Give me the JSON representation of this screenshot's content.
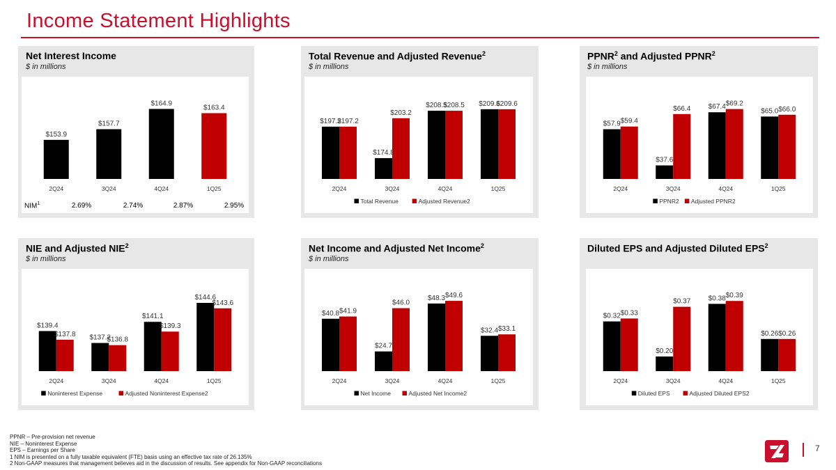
{
  "page": {
    "title": "Income Statement Highlights",
    "page_number": "7",
    "footnotes": [
      "PPNR – Pre-provision net revenue",
      "NIE – Noninterest Expense",
      "EPS – Earnings per Share",
      "1   NIM is presented on a fully taxable equivalent (FTE) basis using an effective tax rate of 26.135%",
      "2   Non-GAAP measures that management believes aid in the discussion of results. See appendix for Non-GAAP reconciliations"
    ]
  },
  "colors": {
    "black": "#000000",
    "red": "#c00000",
    "accent": "#c8102e",
    "panel_bg": "#e7e7e7"
  },
  "panels": {
    "nii": {
      "title": "Net Interest Income",
      "subtitle": "$ in millions",
      "nim_label": "NIM",
      "nim_sup": "1",
      "nim_values": [
        "2.69%",
        "2.74%",
        "2.87%",
        "2.95%"
      ]
    },
    "revenue": {
      "title": "Total Revenue and Adjusted Revenue",
      "sup": "2",
      "subtitle": "$ in millions"
    },
    "ppnr": {
      "title": "PPNR",
      "sup": "2",
      "title_mid": " and Adjusted PPNR",
      "sup2": "2",
      "subtitle": "$ in millions"
    },
    "nie": {
      "title": "NIE and Adjusted NIE",
      "sup": "2",
      "subtitle": "$ in millions"
    },
    "netincome": {
      "title": "Net Income and Adjusted Net Income",
      "sup": "2",
      "subtitle": "$ in millions"
    },
    "eps": {
      "title": "Diluted EPS and Adjusted Diluted EPS",
      "sup": "2",
      "subtitle": ""
    }
  },
  "chart_data": [
    {
      "id": "nii",
      "type": "bar",
      "categories": [
        "2Q24",
        "3Q24",
        "4Q24",
        "1Q25"
      ],
      "series": [
        {
          "values": [
            153.9,
            157.7,
            164.9,
            163.4
          ],
          "colors": [
            "#000000",
            "#000000",
            "#000000",
            "#c00000"
          ]
        }
      ],
      "data_labels": [
        "$153.9",
        "$157.7",
        "$164.9",
        "$163.4"
      ],
      "ylim": [
        140,
        166
      ],
      "legend": "none"
    },
    {
      "id": "revenue",
      "type": "bar",
      "categories": [
        "2Q24",
        "3Q24",
        "4Q24",
        "1Q25"
      ],
      "series": [
        {
          "name": "Total Revenue",
          "color": "#000000",
          "values": [
            197.2,
            174.8,
            208.5,
            209.6
          ],
          "labels": [
            "$197.2",
            "$174.8",
            "$208.5",
            "$209.6"
          ]
        },
        {
          "name": "Adjusted Revenue2",
          "color": "#c00000",
          "values": [
            197.2,
            203.2,
            208.5,
            209.6
          ],
          "labels": [
            "$197.2",
            "$203.2",
            "$208.5",
            "$209.6"
          ]
        }
      ],
      "ylim": [
        160,
        212
      ],
      "legend": "bottom"
    },
    {
      "id": "ppnr",
      "type": "bar",
      "categories": [
        "2Q24",
        "3Q24",
        "4Q24",
        "1Q25"
      ],
      "series": [
        {
          "name": "PPNR2",
          "color": "#000000",
          "values": [
            57.9,
            37.6,
            67.4,
            65.0
          ],
          "labels": [
            "$57.9",
            "$37.6",
            "$67.4",
            "$65.0"
          ]
        },
        {
          "name": "Adjusted PPNR2",
          "color": "#c00000",
          "values": [
            59.4,
            66.4,
            69.2,
            66.0
          ],
          "labels": [
            "$59.4",
            "$66.4",
            "$69.2",
            "$66.0"
          ]
        }
      ],
      "ylim": [
        30,
        71
      ],
      "legend": "bottom"
    },
    {
      "id": "nie",
      "type": "bar",
      "categories": [
        "2Q24",
        "3Q24",
        "4Q24",
        "1Q25"
      ],
      "series": [
        {
          "name": "Noninterest Expense",
          "color": "#000000",
          "values": [
            139.4,
            137.2,
            141.1,
            144.6
          ],
          "labels": [
            "$139.4",
            "$137.2",
            "$141.1",
            "$144.6"
          ]
        },
        {
          "name": "Adjusted Noninterest Expense2",
          "color": "#c00000",
          "values": [
            137.8,
            136.8,
            139.3,
            143.6
          ],
          "labels": [
            "$137.8",
            "$136.8",
            "$139.3",
            "$143.6"
          ]
        }
      ],
      "ylim": [
        132,
        145.5
      ],
      "legend": "bottom"
    },
    {
      "id": "netincome",
      "type": "bar",
      "categories": [
        "2Q24",
        "3Q24",
        "4Q24",
        "1Q25"
      ],
      "series": [
        {
          "name": "Net Income",
          "color": "#000000",
          "values": [
            40.8,
            24.7,
            48.3,
            32.4
          ],
          "labels": [
            "$40.8",
            "$24.7",
            "$48.3",
            "$32.4"
          ]
        },
        {
          "name": "Adjusted Net Income2",
          "color": "#c00000",
          "values": [
            41.9,
            46.0,
            49.6,
            33.1
          ],
          "labels": [
            "$41.9",
            "$46.0",
            "$49.6",
            "$33.1"
          ]
        }
      ],
      "ylim": [
        15,
        51
      ],
      "legend": "bottom"
    },
    {
      "id": "eps",
      "type": "bar",
      "categories": [
        "2Q24",
        "3Q24",
        "4Q24",
        "1Q25"
      ],
      "series": [
        {
          "name": "Diluted EPS",
          "color": "#000000",
          "values": [
            0.32,
            0.2,
            0.38,
            0.26
          ],
          "labels": [
            "$0.32",
            "$0.20",
            "$0.38",
            "$0.26"
          ]
        },
        {
          "name": "Adjusted Diluted EPS2",
          "color": "#c00000",
          "values": [
            0.33,
            0.37,
            0.39,
            0.26
          ],
          "labels": [
            "$0.33",
            "$0.37",
            "$0.39",
            "$0.26"
          ]
        }
      ],
      "ylim": [
        0.15,
        0.4
      ],
      "legend": "bottom"
    }
  ]
}
